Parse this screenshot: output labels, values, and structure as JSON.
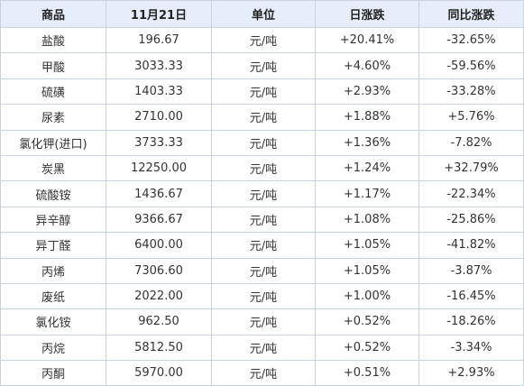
{
  "headers": [
    "商品",
    "11月21日",
    "单位",
    "日涨跌",
    "同比涨跌"
  ],
  "rows": [
    {
      "name": "盐酸",
      "price": "196.67",
      "unit": "元/吨",
      "day": "+20.41%",
      "yoy": "-32.65%"
    },
    {
      "name": "甲酸",
      "price": "3033.33",
      "unit": "元/吨",
      "day": "+4.60%",
      "yoy": "-59.56%"
    },
    {
      "name": "硫磺",
      "price": "1403.33",
      "unit": "元/吨",
      "day": "+2.93%",
      "yoy": "-33.28%"
    },
    {
      "name": "尿素",
      "price": "2710.00",
      "unit": "元/吨",
      "day": "+1.88%",
      "yoy": "+5.76%"
    },
    {
      "name": "氯化钾(进口)",
      "price": "3733.33",
      "unit": "元/吨",
      "day": "+1.36%",
      "yoy": "-7.82%"
    },
    {
      "name": "炭黑",
      "price": "12250.00",
      "unit": "元/吨",
      "day": "+1.24%",
      "yoy": "+32.79%"
    },
    {
      "name": "硫酸铵",
      "price": "1436.67",
      "unit": "元/吨",
      "day": "+1.17%",
      "yoy": "-22.34%"
    },
    {
      "name": "异辛醇",
      "price": "9366.67",
      "unit": "元/吨",
      "day": "+1.08%",
      "yoy": "-25.86%"
    },
    {
      "name": "异丁醛",
      "price": "6400.00",
      "unit": "元/吨",
      "day": "+1.05%",
      "yoy": "-41.82%"
    },
    {
      "name": "丙烯",
      "price": "7306.60",
      "unit": "元/吨",
      "day": "+1.05%",
      "yoy": "-3.87%"
    },
    {
      "name": "废纸",
      "price": "2022.00",
      "unit": "元/吨",
      "day": "+1.00%",
      "yoy": "-16.45%"
    },
    {
      "name": "氯化铵",
      "price": "962.50",
      "unit": "元/吨",
      "day": "+0.52%",
      "yoy": "-18.26%"
    },
    {
      "name": "丙烷",
      "price": "5812.50",
      "unit": "元/吨",
      "day": "+0.52%",
      "yoy": "-3.34%"
    },
    {
      "name": "丙酮",
      "price": "5970.00",
      "unit": "元/吨",
      "day": "+0.51%",
      "yoy": "+2.93%"
    }
  ],
  "colors": {
    "header_bg": "#e6eefb",
    "border": "#c9d3e0",
    "positive": "#e0242b",
    "negative": "#1e8b2a"
  }
}
